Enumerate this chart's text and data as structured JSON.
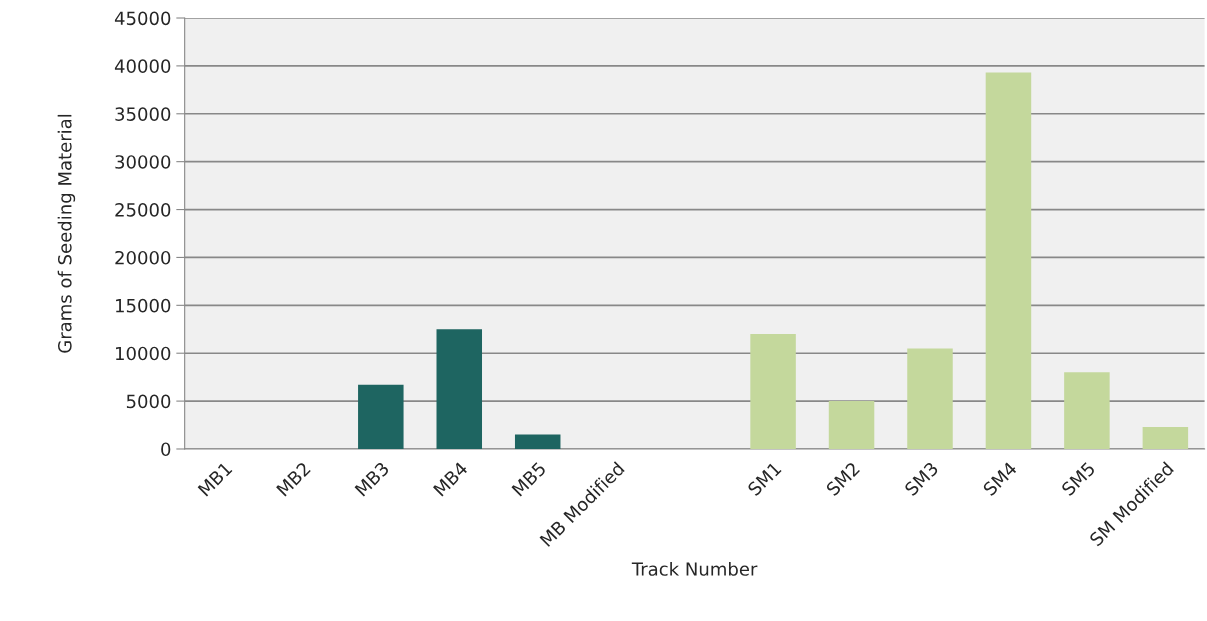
{
  "chart_data": {
    "type": "bar",
    "xlabel": "Track Number",
    "ylabel": "Grams of Seeding Material",
    "categories": [
      "MB1",
      "MB2",
      "MB3",
      "MB4",
      "MB5",
      "MB Modified",
      null,
      "SM1",
      "SM2",
      "SM3",
      "SM4",
      "SM5",
      "SM Modified"
    ],
    "values": [
      null,
      null,
      6700,
      12500,
      1500,
      null,
      null,
      12000,
      5000,
      10500,
      39300,
      8000,
      2300
    ],
    "colors": [
      "#1e6561",
      "#1e6561",
      "#1e6561",
      "#1e6561",
      "#1e6561",
      "#1e6561",
      "#1e6561",
      "#c4d89c",
      "#c4d89c",
      "#c4d89c",
      "#c4d89c",
      "#c4d89c",
      "#c4d89c"
    ],
    "ylim": [
      0,
      45000
    ],
    "yticks": [
      0,
      5000,
      10000,
      15000,
      20000,
      25000,
      30000,
      35000,
      40000,
      45000
    ],
    "grid": "y",
    "legend": false
  }
}
